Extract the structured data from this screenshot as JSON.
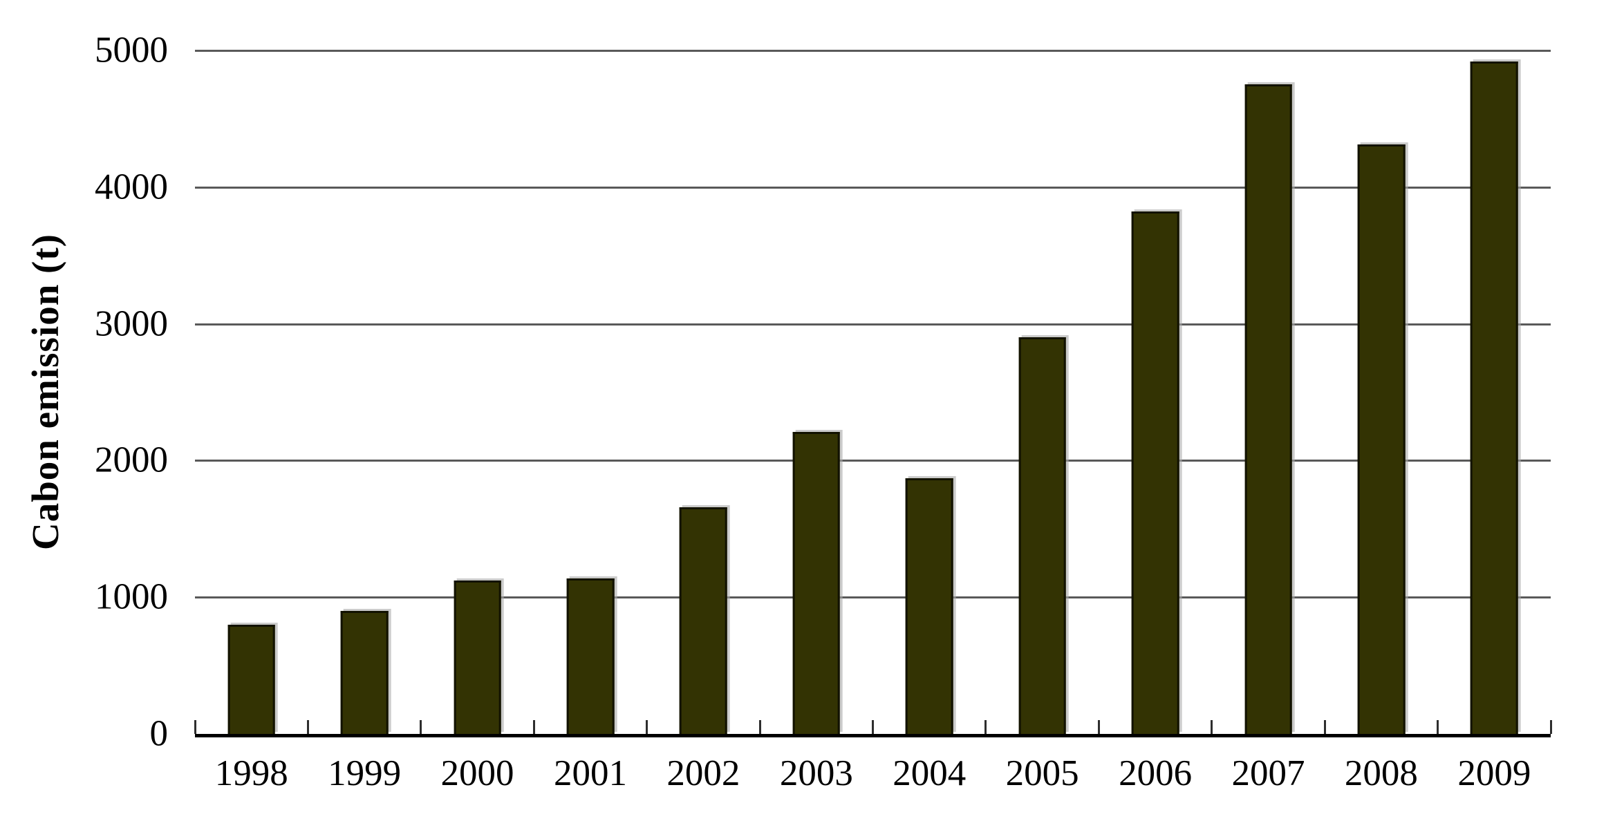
{
  "page": {
    "background_color": "#ffffff",
    "text_color": "#000000"
  },
  "chart_data": {
    "type": "bar",
    "title": "",
    "xlabel": "",
    "ylabel": "Cabon emission (t)",
    "categories": [
      "1998",
      "1999",
      "2000",
      "2001",
      "2002",
      "2003",
      "2004",
      "2005",
      "2006",
      "2007",
      "2008",
      "2009"
    ],
    "values": [
      800,
      900,
      1120,
      1140,
      1660,
      2210,
      1870,
      2900,
      3820,
      4750,
      4310,
      4920
    ],
    "ylim": [
      0,
      5000
    ],
    "yticks": [
      0,
      1000,
      2000,
      3000,
      4000,
      5000
    ],
    "grid": "horizontal",
    "legend_position": "none",
    "bar_color": "#333303",
    "bar_border_color": "#121200",
    "gridline_color": "#595959",
    "baseline_color": "#000000",
    "tick_color": "#2e2e2e"
  }
}
